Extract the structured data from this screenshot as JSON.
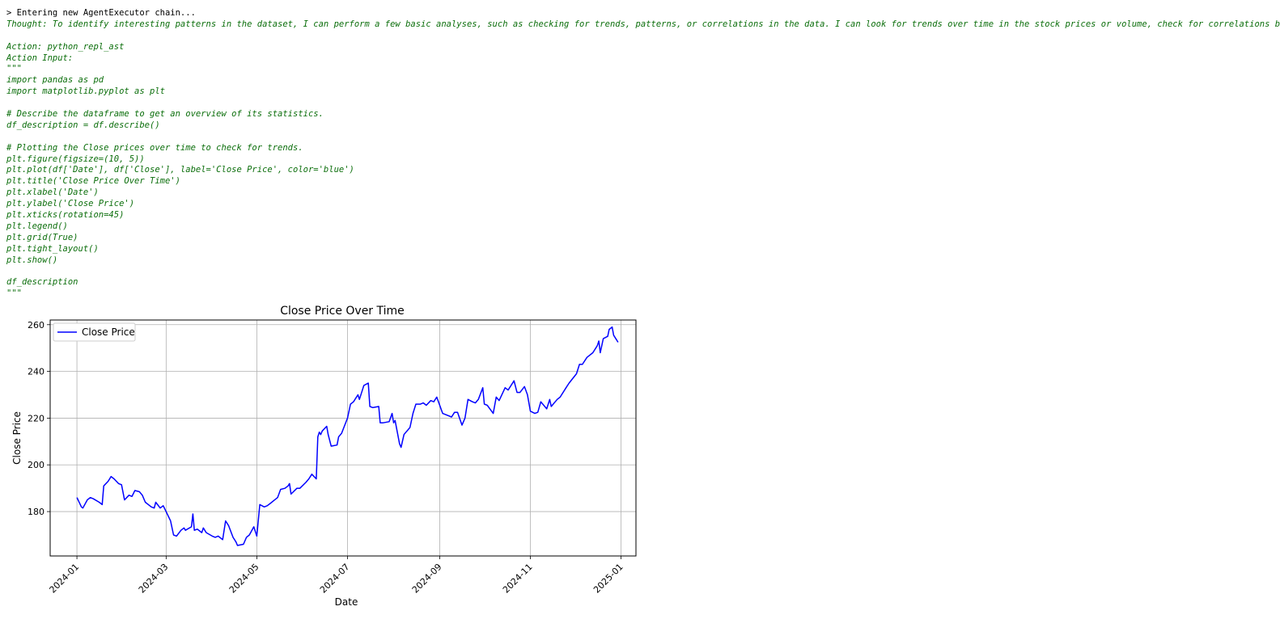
{
  "console": {
    "lines": [
      {
        "text": "> Entering new AgentExecutor chain...",
        "style": "plain"
      },
      {
        "text": "Thought: To identify interesting patterns in the dataset, I can perform a few basic analyses, such as checking for trends, patterns, or correlations in the data. I can look for trends over time in the stock prices or volume, check for correlations between",
        "style": "code"
      },
      {
        "text": "",
        "style": "code"
      },
      {
        "text": "Action: python_repl_ast",
        "style": "code"
      },
      {
        "text": "Action Input:",
        "style": "code"
      },
      {
        "text": "\"\"\"",
        "style": "code"
      },
      {
        "text": "import pandas as pd",
        "style": "code"
      },
      {
        "text": "import matplotlib.pyplot as plt",
        "style": "code"
      },
      {
        "text": "",
        "style": "code"
      },
      {
        "text": "# Describe the dataframe to get an overview of its statistics.",
        "style": "code"
      },
      {
        "text": "df_description = df.describe()",
        "style": "code"
      },
      {
        "text": "",
        "style": "code"
      },
      {
        "text": "# Plotting the Close prices over time to check for trends.",
        "style": "code"
      },
      {
        "text": "plt.figure(figsize=(10, 5))",
        "style": "code"
      },
      {
        "text": "plt.plot(df['Date'], df['Close'], label='Close Price', color='blue')",
        "style": "code"
      },
      {
        "text": "plt.title('Close Price Over Time')",
        "style": "code"
      },
      {
        "text": "plt.xlabel('Date')",
        "style": "code"
      },
      {
        "text": "plt.ylabel('Close Price')",
        "style": "code"
      },
      {
        "text": "plt.xticks(rotation=45)",
        "style": "code"
      },
      {
        "text": "plt.legend()",
        "style": "code"
      },
      {
        "text": "plt.grid(True)",
        "style": "code"
      },
      {
        "text": "plt.tight_layout()",
        "style": "code"
      },
      {
        "text": "plt.show()",
        "style": "code"
      },
      {
        "text": "",
        "style": "code"
      },
      {
        "text": "df_description",
        "style": "code"
      },
      {
        "text": "\"\"\"",
        "style": "code"
      }
    ],
    "colors": {
      "plain": "#000000",
      "code": "#0b6e0b"
    }
  },
  "chart_data": {
    "type": "line",
    "title": "Close Price Over Time",
    "xlabel": "Date",
    "ylabel": "Close Price",
    "ylim": [
      161,
      262
    ],
    "xlim": [
      "2023-12-14",
      "2025-01-11"
    ],
    "x_ticks": [
      "2024-01",
      "2024-03",
      "2024-05",
      "2024-07",
      "2024-09",
      "2024-11",
      "2025-01"
    ],
    "y_ticks": [
      180,
      200,
      220,
      240,
      260
    ],
    "grid": true,
    "legend_position": "top-left",
    "color": "#0000ff",
    "series": [
      {
        "name": "Close Price",
        "points": [
          [
            "2024-01-01",
            186
          ],
          [
            "2024-01-04",
            182
          ],
          [
            "2024-01-05",
            181.5
          ],
          [
            "2024-01-08",
            185
          ],
          [
            "2024-01-10",
            186
          ],
          [
            "2024-01-12",
            185.5
          ],
          [
            "2024-01-16",
            184
          ],
          [
            "2024-01-18",
            183
          ],
          [
            "2024-01-19",
            191
          ],
          [
            "2024-01-22",
            193
          ],
          [
            "2024-01-24",
            195
          ],
          [
            "2024-01-26",
            194
          ],
          [
            "2024-01-29",
            192
          ],
          [
            "2024-01-31",
            191.5
          ],
          [
            "2024-02-02",
            185
          ],
          [
            "2024-02-05",
            187
          ],
          [
            "2024-02-07",
            186.5
          ],
          [
            "2024-02-09",
            189
          ],
          [
            "2024-02-12",
            188.5
          ],
          [
            "2024-02-14",
            187
          ],
          [
            "2024-02-16",
            184
          ],
          [
            "2024-02-20",
            182
          ],
          [
            "2024-02-22",
            181.5
          ],
          [
            "2024-02-23",
            184
          ],
          [
            "2024-02-26",
            181.5
          ],
          [
            "2024-02-28",
            182.5
          ],
          [
            "2024-03-01",
            180
          ],
          [
            "2024-03-04",
            176
          ],
          [
            "2024-03-06",
            170
          ],
          [
            "2024-03-08",
            169.5
          ],
          [
            "2024-03-11",
            172
          ],
          [
            "2024-03-13",
            173
          ],
          [
            "2024-03-14",
            172
          ],
          [
            "2024-03-18",
            173.5
          ],
          [
            "2024-03-19",
            179
          ],
          [
            "2024-03-20",
            172
          ],
          [
            "2024-03-22",
            172.5
          ],
          [
            "2024-03-25",
            171
          ],
          [
            "2024-03-26",
            173
          ],
          [
            "2024-03-28",
            171
          ],
          [
            "2024-04-01",
            169.5
          ],
          [
            "2024-04-03",
            169
          ],
          [
            "2024-04-05",
            169.5
          ],
          [
            "2024-04-08",
            168
          ],
          [
            "2024-04-10",
            176
          ],
          [
            "2024-04-12",
            174
          ],
          [
            "2024-04-15",
            169
          ],
          [
            "2024-04-17",
            167
          ],
          [
            "2024-04-18",
            165.5
          ],
          [
            "2024-04-22",
            166
          ],
          [
            "2024-04-24",
            169
          ],
          [
            "2024-04-26",
            170
          ],
          [
            "2024-04-29",
            173.5
          ],
          [
            "2024-05-01",
            169.5
          ],
          [
            "2024-05-03",
            183
          ],
          [
            "2024-05-06",
            182
          ],
          [
            "2024-05-08",
            182.5
          ],
          [
            "2024-05-10",
            183.5
          ],
          [
            "2024-05-13",
            185
          ],
          [
            "2024-05-15",
            186
          ],
          [
            "2024-05-17",
            189.5
          ],
          [
            "2024-05-20",
            190
          ],
          [
            "2024-05-22",
            191
          ],
          [
            "2024-05-23",
            192
          ],
          [
            "2024-05-24",
            187.5
          ],
          [
            "2024-05-28",
            190
          ],
          [
            "2024-05-30",
            190
          ],
          [
            "2024-06-03",
            192.5
          ],
          [
            "2024-06-05",
            194
          ],
          [
            "2024-06-07",
            196
          ],
          [
            "2024-06-10",
            194
          ],
          [
            "2024-06-11",
            212
          ],
          [
            "2024-06-12",
            214
          ],
          [
            "2024-06-13",
            213
          ],
          [
            "2024-06-14",
            214.5
          ],
          [
            "2024-06-17",
            216.5
          ],
          [
            "2024-06-18",
            213
          ],
          [
            "2024-06-20",
            208
          ],
          [
            "2024-06-24",
            208.5
          ],
          [
            "2024-06-25",
            212
          ],
          [
            "2024-06-27",
            213.5
          ],
          [
            "2024-07-01",
            220
          ],
          [
            "2024-07-03",
            226
          ],
          [
            "2024-07-05",
            227
          ],
          [
            "2024-07-08",
            230
          ],
          [
            "2024-07-09",
            228
          ],
          [
            "2024-07-11",
            232
          ],
          [
            "2024-07-12",
            234
          ],
          [
            "2024-07-15",
            235
          ],
          [
            "2024-07-16",
            225
          ],
          [
            "2024-07-18",
            224.5
          ],
          [
            "2024-07-22",
            225
          ],
          [
            "2024-07-23",
            218
          ],
          [
            "2024-07-25",
            218
          ],
          [
            "2024-07-29",
            218.5
          ],
          [
            "2024-07-31",
            222
          ],
          [
            "2024-08-01",
            218
          ],
          [
            "2024-08-02",
            219
          ],
          [
            "2024-08-05",
            209
          ],
          [
            "2024-08-06",
            207.5
          ],
          [
            "2024-08-08",
            213
          ],
          [
            "2024-08-12",
            216
          ],
          [
            "2024-08-14",
            222
          ],
          [
            "2024-08-16",
            226
          ],
          [
            "2024-08-19",
            226
          ],
          [
            "2024-08-21",
            226.5
          ],
          [
            "2024-08-23",
            225.5
          ],
          [
            "2024-08-26",
            227.5
          ],
          [
            "2024-08-28",
            227
          ],
          [
            "2024-08-30",
            229
          ],
          [
            "2024-09-03",
            222
          ],
          [
            "2024-09-05",
            221.5
          ],
          [
            "2024-09-09",
            220.5
          ],
          [
            "2024-09-11",
            222.5
          ],
          [
            "2024-09-13",
            222.5
          ],
          [
            "2024-09-16",
            217
          ],
          [
            "2024-09-18",
            220
          ],
          [
            "2024-09-20",
            228
          ],
          [
            "2024-09-23",
            227
          ],
          [
            "2024-09-25",
            226.5
          ],
          [
            "2024-09-27",
            228
          ],
          [
            "2024-09-30",
            233
          ],
          [
            "2024-10-01",
            226
          ],
          [
            "2024-10-03",
            225.5
          ],
          [
            "2024-10-07",
            222
          ],
          [
            "2024-10-09",
            229
          ],
          [
            "2024-10-11",
            227.5
          ],
          [
            "2024-10-15",
            233
          ],
          [
            "2024-10-17",
            232
          ],
          [
            "2024-10-21",
            236
          ],
          [
            "2024-10-23",
            231
          ],
          [
            "2024-10-25",
            231
          ],
          [
            "2024-10-28",
            233.5
          ],
          [
            "2024-10-30",
            230
          ],
          [
            "2024-11-01",
            223
          ],
          [
            "2024-11-04",
            222
          ],
          [
            "2024-11-06",
            222.5
          ],
          [
            "2024-11-08",
            227
          ],
          [
            "2024-11-12",
            224
          ],
          [
            "2024-11-14",
            228
          ],
          [
            "2024-11-15",
            225
          ],
          [
            "2024-11-19",
            228
          ],
          [
            "2024-11-21",
            229
          ],
          [
            "2024-11-25",
            233
          ],
          [
            "2024-11-27",
            235
          ],
          [
            "2024-12-02",
            239
          ],
          [
            "2024-12-04",
            243
          ],
          [
            "2024-12-06",
            243
          ],
          [
            "2024-12-09",
            246
          ],
          [
            "2024-12-11",
            247
          ],
          [
            "2024-12-13",
            248
          ],
          [
            "2024-12-16",
            251
          ],
          [
            "2024-12-17",
            253
          ],
          [
            "2024-12-18",
            248
          ],
          [
            "2024-12-20",
            254
          ],
          [
            "2024-12-23",
            255
          ],
          [
            "2024-12-24",
            258
          ],
          [
            "2024-12-26",
            259
          ],
          [
            "2024-12-27",
            255.5
          ],
          [
            "2024-12-30",
            252.5
          ]
        ]
      }
    ]
  }
}
